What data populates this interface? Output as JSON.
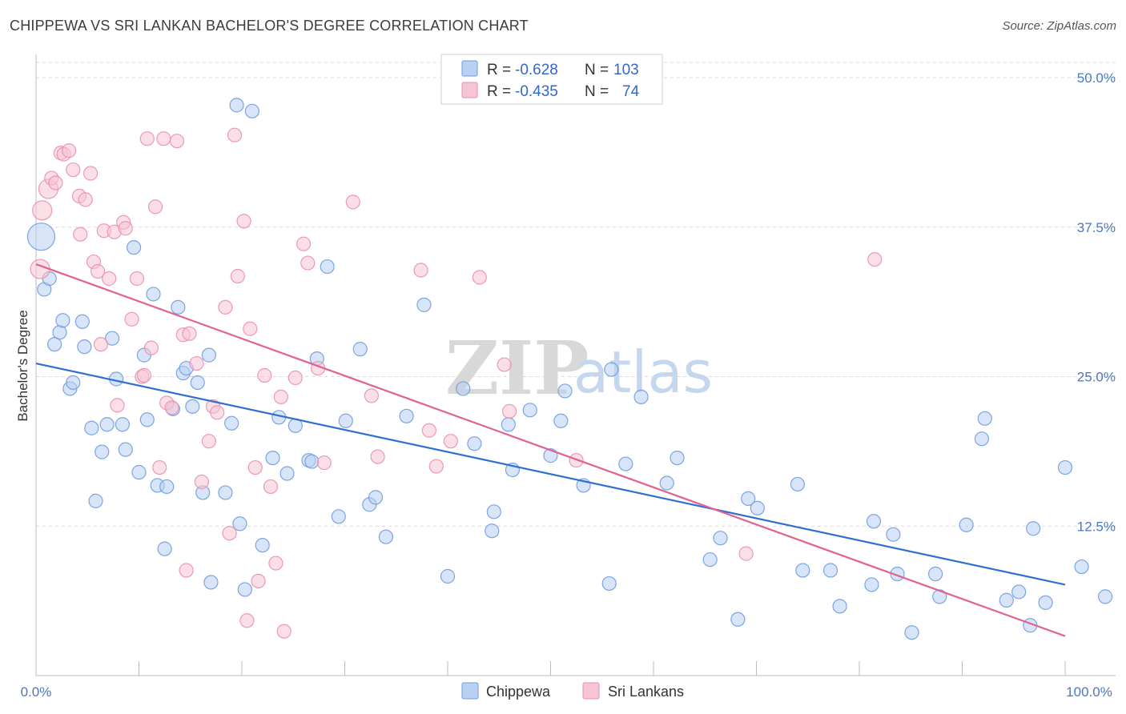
{
  "title": "CHIPPEWA VS SRI LANKAN BACHELOR'S DEGREE CORRELATION CHART",
  "source": "Source: ZipAtlas.com",
  "watermark": {
    "zip": "ZIP",
    "atlas": "atlas"
  },
  "legend": {
    "rows": [
      {
        "r_label": "R =",
        "r_value": "-0.628",
        "n_label": "N =",
        "n_value": "103"
      },
      {
        "r_label": "R =",
        "r_value": "-0.435",
        "n_label": "N =",
        "n_value": "74"
      }
    ]
  },
  "colors": {
    "chippewa_fill": "#b8d0f2",
    "chippewa_stroke": "#6f9be0",
    "chippewa_line": "#2f6fd0",
    "srilankan_fill": "#f6c4d3",
    "srilankan_stroke": "#ea8fae",
    "srilankan_line": "#e0628f",
    "tick_label": "#4a78c2"
  },
  "chart_data": {
    "type": "scatter",
    "title": "CHIPPEWA VS SRI LANKAN BACHELOR'S DEGREE CORRELATION CHART",
    "xlabel": "",
    "ylabel": "Bachelor's Degree",
    "xlim": [
      0,
      100
    ],
    "ylim": [
      0,
      52
    ],
    "x_tick_labels": [
      "0.0%",
      "100.0%"
    ],
    "y_ticks": [
      12.5,
      25.0,
      37.5,
      50.0
    ],
    "y_tick_labels": [
      "12.5%",
      "25.0%",
      "37.5%",
      "50.0%"
    ],
    "grid": true,
    "legend_position": "top-center",
    "series": [
      {
        "name": "Chippewa",
        "r": -0.628,
        "n": 103,
        "trend": {
          "x": [
            0,
            100
          ],
          "y": [
            26.1,
            7.6
          ]
        },
        "points": [
          [
            0.5,
            36.7,
            3
          ],
          [
            0.8,
            32.3,
            1
          ],
          [
            1.3,
            33.2,
            1
          ],
          [
            1.8,
            27.7,
            1
          ],
          [
            2.3,
            28.7,
            1
          ],
          [
            2.6,
            29.7,
            1
          ],
          [
            3.3,
            24.0,
            1
          ],
          [
            3.6,
            24.5,
            1
          ],
          [
            4.5,
            29.6,
            1
          ],
          [
            4.7,
            27.5,
            1
          ],
          [
            5.4,
            20.7,
            1
          ],
          [
            5.8,
            14.6,
            1
          ],
          [
            6.4,
            18.7,
            1
          ],
          [
            6.9,
            21.0,
            1
          ],
          [
            7.4,
            28.2,
            1
          ],
          [
            7.8,
            24.8,
            1
          ],
          [
            8.4,
            21.0,
            1
          ],
          [
            8.7,
            18.9,
            1
          ],
          [
            9.5,
            35.8,
            1
          ],
          [
            10.0,
            17.0,
            1
          ],
          [
            10.5,
            26.8,
            1
          ],
          [
            10.8,
            21.4,
            1
          ],
          [
            11.4,
            31.9,
            1
          ],
          [
            11.8,
            15.9,
            1
          ],
          [
            12.5,
            10.6,
            1
          ],
          [
            12.7,
            15.8,
            1
          ],
          [
            13.3,
            22.3,
            1
          ],
          [
            13.8,
            30.8,
            1
          ],
          [
            14.3,
            25.3,
            1
          ],
          [
            14.6,
            25.7,
            1
          ],
          [
            15.2,
            22.5,
            1
          ],
          [
            15.7,
            24.5,
            1
          ],
          [
            16.2,
            15.3,
            1
          ],
          [
            16.8,
            26.8,
            1
          ],
          [
            17.0,
            7.8,
            1
          ],
          [
            18.4,
            15.3,
            1
          ],
          [
            19.0,
            21.1,
            1
          ],
          [
            19.5,
            47.7,
            1
          ],
          [
            19.8,
            12.7,
            1
          ],
          [
            20.3,
            7.2,
            1
          ],
          [
            21.0,
            47.2,
            1
          ],
          [
            22.0,
            10.9,
            1
          ],
          [
            23.0,
            18.2,
            1
          ],
          [
            23.6,
            21.6,
            1
          ],
          [
            24.4,
            16.9,
            1
          ],
          [
            25.2,
            20.9,
            1
          ],
          [
            26.5,
            18.0,
            1
          ],
          [
            26.8,
            17.9,
            1
          ],
          [
            27.3,
            26.5,
            1
          ],
          [
            28.3,
            34.2,
            1
          ],
          [
            29.4,
            13.3,
            1
          ],
          [
            30.1,
            21.3,
            1
          ],
          [
            31.5,
            27.3,
            1
          ],
          [
            32.4,
            14.3,
            1
          ],
          [
            33.0,
            14.9,
            1
          ],
          [
            34.0,
            11.6,
            1
          ],
          [
            36.0,
            21.7,
            1
          ],
          [
            37.7,
            31.0,
            1
          ],
          [
            40.0,
            8.3,
            1
          ],
          [
            41.5,
            24.0,
            1
          ],
          [
            42.6,
            19.4,
            1
          ],
          [
            44.3,
            12.1,
            1
          ],
          [
            44.5,
            13.7,
            1
          ],
          [
            45.9,
            21.0,
            1
          ],
          [
            46.3,
            17.2,
            1
          ],
          [
            48.0,
            22.2,
            1
          ],
          [
            50.0,
            18.4,
            1
          ],
          [
            51.0,
            21.3,
            1
          ],
          [
            51.4,
            23.8,
            1
          ],
          [
            53.2,
            15.9,
            1
          ],
          [
            55.7,
            7.7,
            1
          ],
          [
            55.9,
            25.6,
            1
          ],
          [
            57.3,
            17.7,
            1
          ],
          [
            58.8,
            23.3,
            1
          ],
          [
            61.3,
            16.1,
            1
          ],
          [
            62.3,
            18.2,
            1
          ],
          [
            65.5,
            9.7,
            1
          ],
          [
            66.5,
            11.5,
            1
          ],
          [
            68.2,
            4.7,
            1
          ],
          [
            69.2,
            14.8,
            1
          ],
          [
            70.1,
            14.0,
            1
          ],
          [
            74.0,
            16.0,
            1
          ],
          [
            74.5,
            8.8,
            1
          ],
          [
            77.2,
            8.8,
            1
          ],
          [
            78.1,
            5.8,
            1
          ],
          [
            81.2,
            7.6,
            1
          ],
          [
            81.4,
            12.9,
            1
          ],
          [
            83.3,
            11.8,
            1
          ],
          [
            83.7,
            8.5,
            1
          ],
          [
            85.1,
            3.6,
            1
          ],
          [
            87.4,
            8.5,
            1
          ],
          [
            87.8,
            6.6,
            1
          ],
          [
            90.4,
            12.6,
            1
          ],
          [
            91.9,
            19.8,
            1
          ],
          [
            92.2,
            21.5,
            1
          ],
          [
            94.3,
            6.3,
            1
          ],
          [
            95.5,
            7.0,
            1
          ],
          [
            96.6,
            4.2,
            1
          ],
          [
            96.9,
            12.3,
            1
          ],
          [
            98.1,
            6.1,
            1
          ],
          [
            100.0,
            17.4,
            1
          ],
          [
            101.6,
            9.1,
            1
          ],
          [
            103.9,
            6.6,
            1
          ]
        ]
      },
      {
        "name": "Sri Lankans",
        "r": -0.435,
        "n": 74,
        "trend": {
          "x": [
            0,
            100
          ],
          "y": [
            34.4,
            3.3
          ]
        },
        "points": [
          [
            0.4,
            34.0,
            2
          ],
          [
            0.6,
            38.9,
            2
          ],
          [
            1.2,
            40.7,
            2
          ],
          [
            1.5,
            41.6,
            1
          ],
          [
            1.9,
            41.2,
            1
          ],
          [
            2.4,
            43.7,
            1
          ],
          [
            2.7,
            43.6,
            1
          ],
          [
            3.2,
            43.9,
            1
          ],
          [
            3.6,
            42.3,
            1
          ],
          [
            4.2,
            40.1,
            1
          ],
          [
            4.3,
            36.9,
            1
          ],
          [
            4.8,
            39.8,
            1
          ],
          [
            5.3,
            42.0,
            1
          ],
          [
            5.6,
            34.6,
            1
          ],
          [
            6.0,
            33.8,
            1
          ],
          [
            6.3,
            27.7,
            1
          ],
          [
            6.6,
            37.2,
            1
          ],
          [
            7.1,
            33.2,
            1
          ],
          [
            7.6,
            37.1,
            1
          ],
          [
            7.9,
            22.6,
            1
          ],
          [
            8.5,
            37.9,
            1
          ],
          [
            8.7,
            37.4,
            1
          ],
          [
            9.3,
            29.8,
            1
          ],
          [
            9.8,
            33.2,
            1
          ],
          [
            10.3,
            25.0,
            1
          ],
          [
            10.5,
            25.1,
            1
          ],
          [
            10.8,
            44.9,
            1
          ],
          [
            11.2,
            27.4,
            1
          ],
          [
            11.6,
            39.2,
            1
          ],
          [
            12.0,
            17.4,
            1
          ],
          [
            12.4,
            44.9,
            1
          ],
          [
            12.7,
            22.8,
            1
          ],
          [
            13.2,
            22.4,
            1
          ],
          [
            13.7,
            44.7,
            1
          ],
          [
            14.3,
            28.5,
            1
          ],
          [
            14.6,
            8.8,
            1
          ],
          [
            14.9,
            28.6,
            1
          ],
          [
            15.6,
            26.1,
            1
          ],
          [
            16.1,
            16.2,
            1
          ],
          [
            16.8,
            19.6,
            1
          ],
          [
            17.2,
            22.5,
            1
          ],
          [
            17.6,
            22.0,
            1
          ],
          [
            18.4,
            30.8,
            1
          ],
          [
            18.8,
            11.9,
            1
          ],
          [
            19.3,
            45.2,
            1
          ],
          [
            19.6,
            33.4,
            1
          ],
          [
            20.2,
            38.0,
            1
          ],
          [
            20.5,
            4.6,
            1
          ],
          [
            20.8,
            29.0,
            1
          ],
          [
            21.3,
            17.4,
            1
          ],
          [
            21.6,
            7.9,
            1
          ],
          [
            22.2,
            25.1,
            1
          ],
          [
            22.8,
            15.8,
            1
          ],
          [
            23.3,
            9.4,
            1
          ],
          [
            23.8,
            23.3,
            1
          ],
          [
            24.1,
            3.7,
            1
          ],
          [
            25.2,
            24.9,
            1
          ],
          [
            26.0,
            36.1,
            1
          ],
          [
            26.4,
            34.5,
            1
          ],
          [
            27.4,
            25.7,
            1
          ],
          [
            28.0,
            17.8,
            1
          ],
          [
            30.8,
            39.6,
            1
          ],
          [
            32.6,
            23.4,
            1
          ],
          [
            33.2,
            18.3,
            1
          ],
          [
            37.4,
            33.9,
            1
          ],
          [
            38.2,
            20.5,
            1
          ],
          [
            38.9,
            17.5,
            1
          ],
          [
            40.3,
            19.6,
            1
          ],
          [
            43.1,
            33.3,
            1
          ],
          [
            45.5,
            26.0,
            1
          ],
          [
            46.0,
            22.1,
            1
          ],
          [
            52.5,
            18.0,
            1
          ],
          [
            69.0,
            10.2,
            1
          ],
          [
            81.5,
            34.8,
            1
          ]
        ]
      }
    ]
  }
}
